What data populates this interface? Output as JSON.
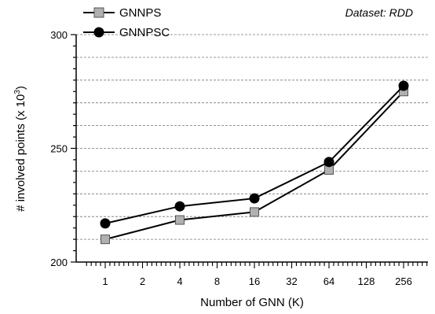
{
  "chart_data": {
    "type": "line",
    "annotation": "Dataset: RDD",
    "xlabel": "Number of GNN (K)",
    "ylabel": "# involved points (x 10",
    "ylabel_exp": "3",
    "ylabel_close": ")",
    "x_scale": "log2",
    "x_ticks": [
      1,
      2,
      4,
      8,
      16,
      32,
      64,
      128,
      256
    ],
    "x_tick_labels": [
      "1",
      "2",
      "4",
      "8",
      "16",
      "32",
      "64",
      "128",
      "256"
    ],
    "ylim": [
      200,
      300
    ],
    "y_ticks": [
      200,
      250,
      300
    ],
    "y_tick_labels": [
      "200",
      "250",
      "300"
    ],
    "grid": "dashed horizontal",
    "legend_position": "top-left",
    "x": [
      1,
      4,
      16,
      64,
      256
    ],
    "series": [
      {
        "name": "GNNPS",
        "values": [
          210,
          218.5,
          222,
          240.5,
          275
        ],
        "marker": "square",
        "color": "#b0b0b0"
      },
      {
        "name": "GNNPSC",
        "values": [
          217,
          224.5,
          228,
          244,
          277.5
        ],
        "marker": "circle",
        "color": "#000000"
      }
    ]
  }
}
